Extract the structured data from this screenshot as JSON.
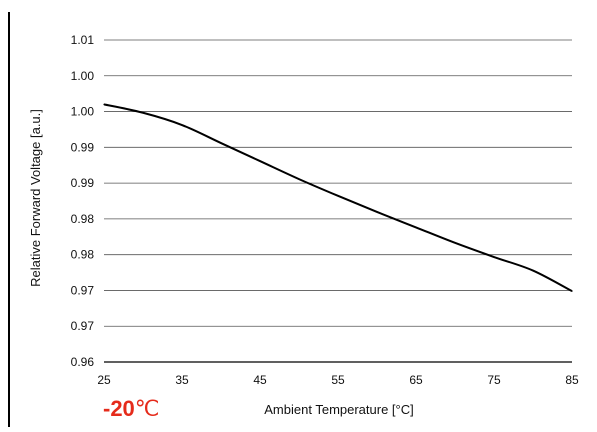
{
  "chart_data": {
    "type": "line",
    "xlabel": "Ambient Temperature [°C]",
    "ylabel": "Relative Forward Voltage [a.u.]",
    "x_ticks": [
      "25",
      "35",
      "45",
      "55",
      "65",
      "75",
      "85"
    ],
    "y_ticks": [
      "1.01",
      "1.00",
      "1.00",
      "0.99",
      "0.99",
      "0.98",
      "0.98",
      "0.97",
      "0.97",
      "0.96"
    ],
    "xlim": [
      25,
      85
    ],
    "ylim": [
      0.9625,
      1.0125
    ],
    "grid": true,
    "series": [
      {
        "x": [
          25,
          30,
          35,
          40,
          45,
          50,
          55,
          60,
          65,
          70,
          75,
          80,
          85
        ],
        "y": [
          1.0025,
          1.0012,
          0.9993,
          0.9965,
          0.9937,
          0.9909,
          0.9883,
          0.9858,
          0.9834,
          0.981,
          0.9788,
          0.9767,
          0.9735
        ]
      }
    ],
    "colors": {
      "line": "#000000",
      "grid": "#555555"
    }
  },
  "annotation": {
    "value": "-20",
    "unit": "℃",
    "color": "#e52b1b"
  }
}
